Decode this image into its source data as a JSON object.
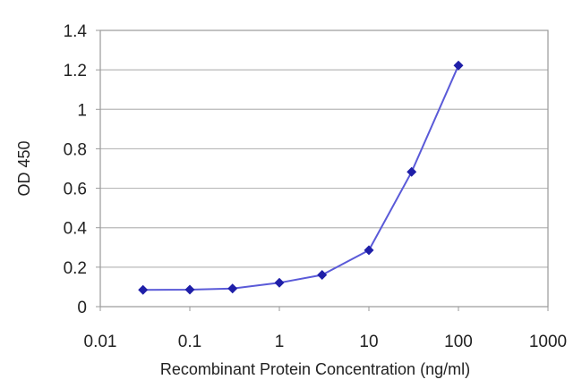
{
  "chart_data": {
    "type": "line",
    "title": "",
    "xlabel": "Recombinant Protein Concentration (ng/ml)",
    "ylabel": "OD 450",
    "x_scale": "log",
    "xlim": [
      0.01,
      1000
    ],
    "ylim": [
      0,
      1.4
    ],
    "x_ticks": [
      0.01,
      0.1,
      1,
      10,
      100,
      1000
    ],
    "x_tick_labels": [
      "0.01",
      "0.1",
      "1",
      "10",
      "100",
      "1000"
    ],
    "y_ticks": [
      0,
      0.2,
      0.4,
      0.6,
      0.8,
      1,
      1.2,
      1.4
    ],
    "y_tick_labels": [
      "0",
      "0.2",
      "0.4",
      "0.6",
      "0.8",
      "1",
      "1.2",
      "1.4"
    ],
    "grid": "horizontal",
    "legend": "none",
    "series": [
      {
        "x": [
          0.03,
          0.1,
          0.3,
          1,
          3,
          10,
          30,
          100
        ],
        "y": [
          0.085,
          0.086,
          0.092,
          0.121,
          0.161,
          0.286,
          0.683,
          1.222
        ],
        "color": "#1f1fa8",
        "marker": "diamond"
      }
    ]
  },
  "colors": {
    "line": "#5a5ad8",
    "marker": "#1f1fa8",
    "grid": "#b8b8b8",
    "frame": "#9a9a9a",
    "text": "#222222"
  }
}
